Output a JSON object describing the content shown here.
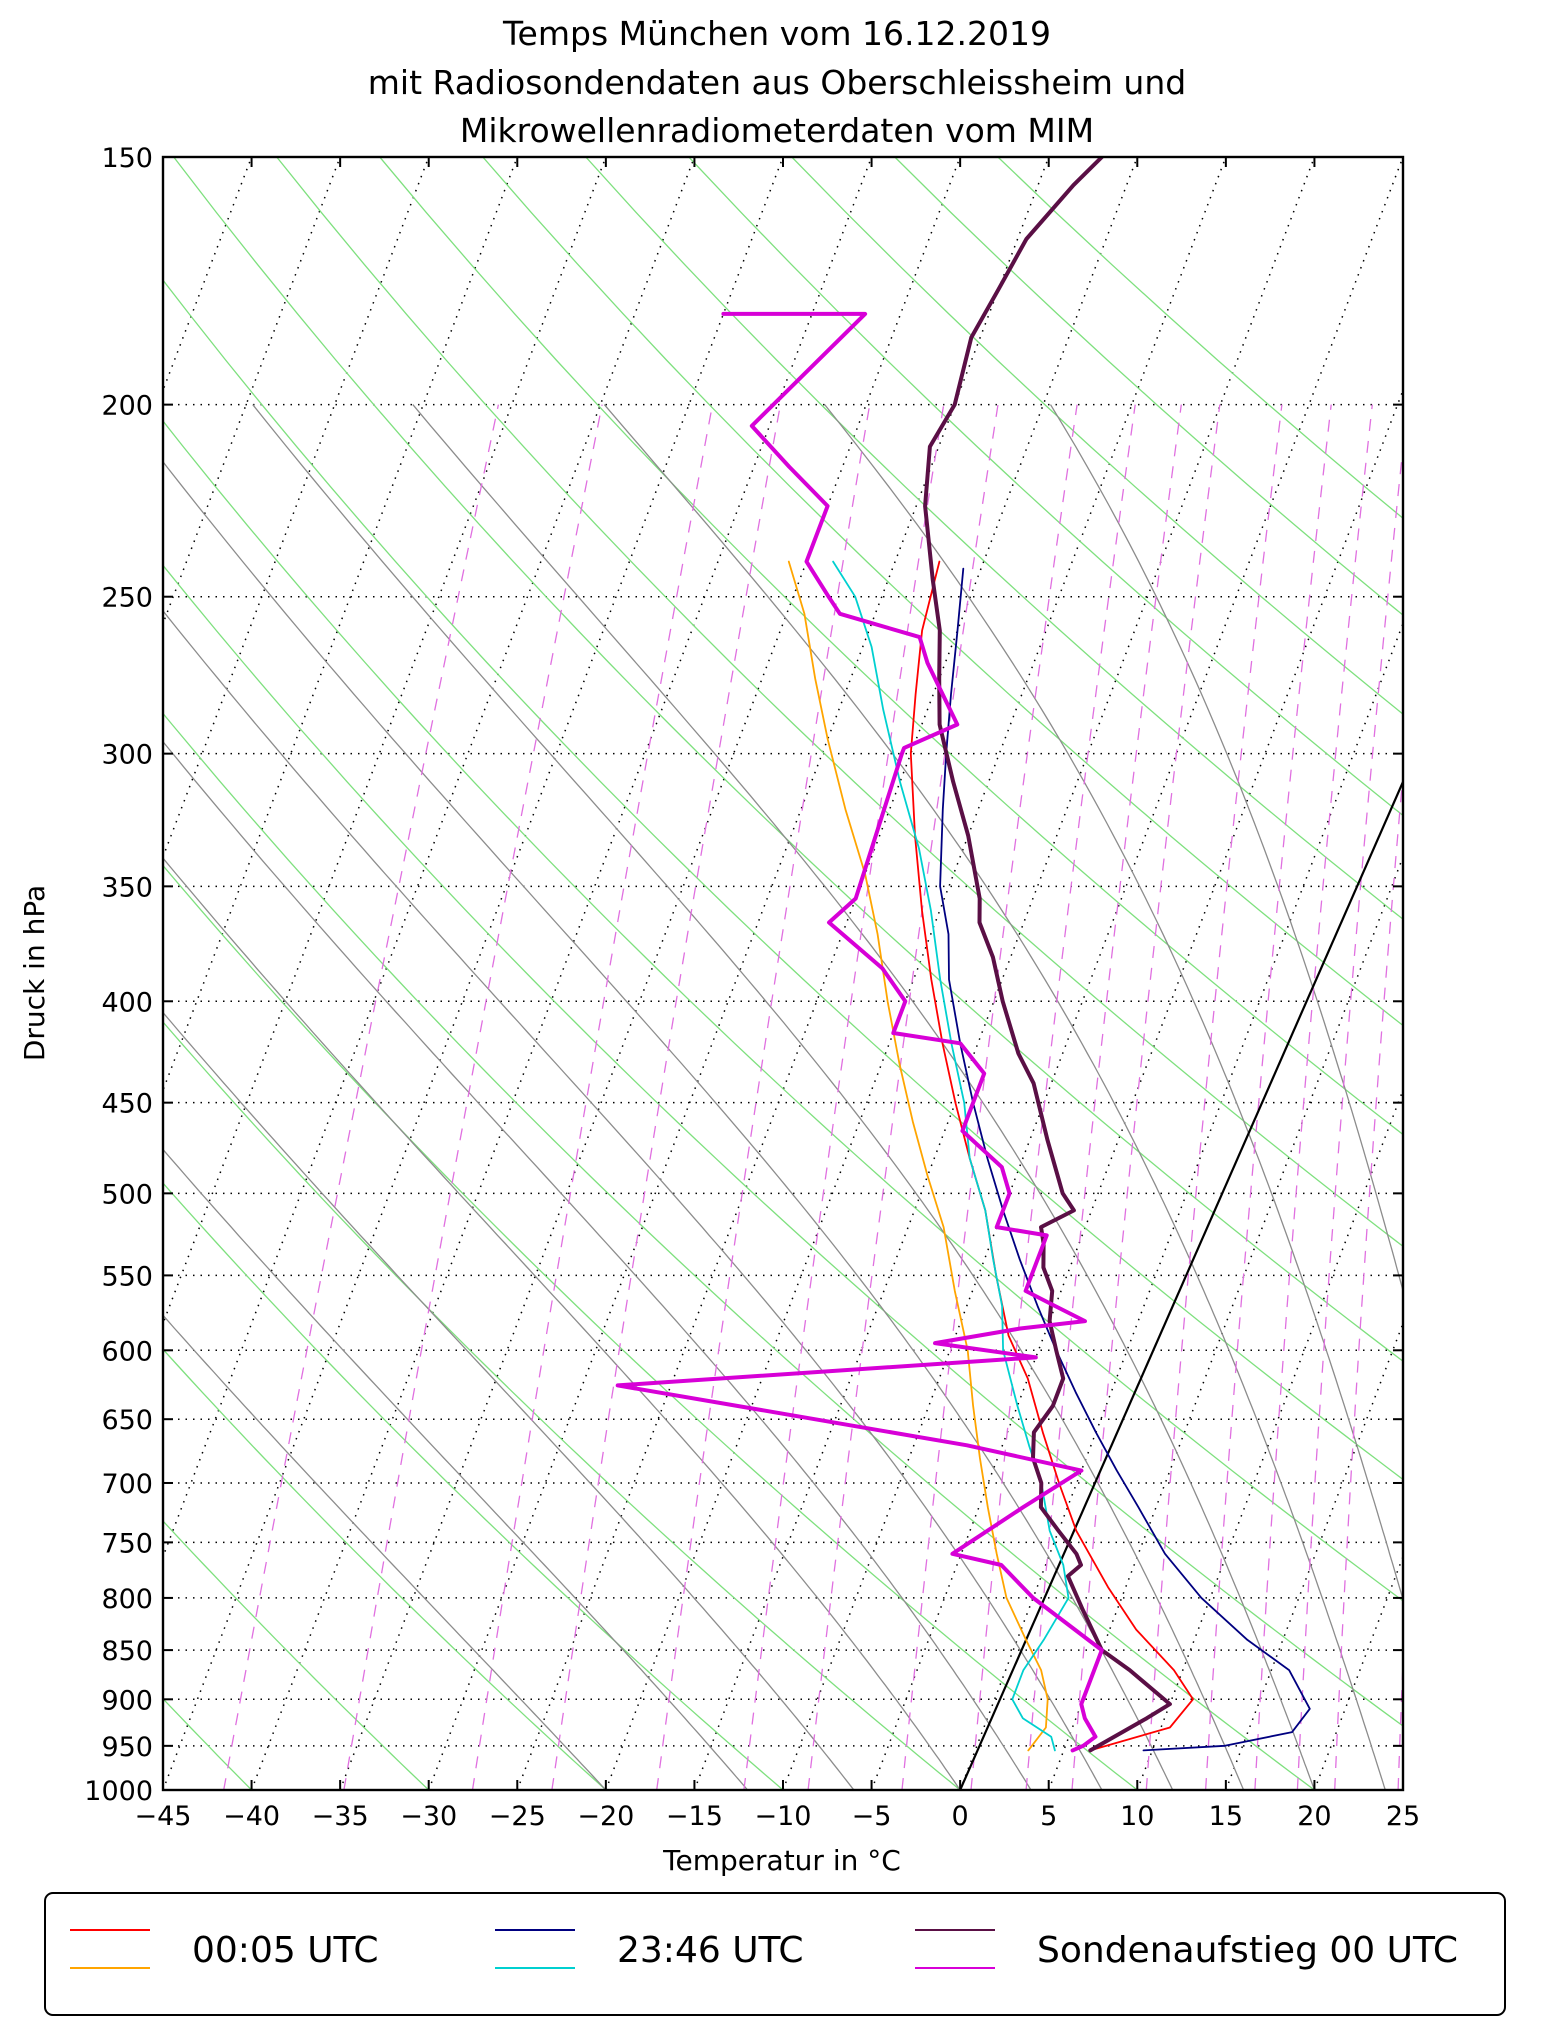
{
  "chart_data": {
    "type": "skew-t log-p",
    "title_lines": [
      "Temps München vom 16.12.2019",
      "mit Radiosondendaten aus Oberschleissheim und",
      "Mikrowellenradiometerdaten vom MIM"
    ],
    "xlabel": "Temperatur in °C",
    "ylabel": "Druck in hPa",
    "xlim": [
      -45,
      25
    ],
    "ylim": [
      1000,
      150
    ],
    "y_scale": "log",
    "grid": true,
    "x_ticks": [
      "−45",
      "−40",
      "−35",
      "−30",
      "−25",
      "−20",
      "−15",
      "−10",
      "−5",
      "0",
      "5",
      "10",
      "15",
      "20",
      "25"
    ],
    "y_ticks": [
      "150",
      "200",
      "250",
      "300",
      "350",
      "400",
      "450",
      "500",
      "550",
      "600",
      "650",
      "700",
      "750",
      "800",
      "850",
      "900",
      "950",
      "1000"
    ],
    "legend": {
      "placement": "bottom",
      "entries": [
        {
          "label": "00:05 UTC",
          "colors": [
            "#ff0000",
            "#ffa500"
          ]
        },
        {
          "label": "23:46 UTC",
          "colors": [
            "#000080",
            "#00d0d0"
          ]
        },
        {
          "label": "Sondenaufstieg 00 UTC",
          "colors": [
            "#5a0f45",
            "#d700d7"
          ]
        }
      ]
    },
    "series": [
      {
        "key": "mwr1_temp",
        "color": "#ff0000",
        "width": 1.8,
        "points": [
          [
            6.5,
            955
          ],
          [
            10.5,
            930
          ],
          [
            11.2,
            900
          ],
          [
            9.5,
            870
          ],
          [
            6.5,
            830
          ],
          [
            4,
            790
          ],
          [
            1,
            740
          ],
          [
            -1,
            700
          ],
          [
            -3,
            660
          ],
          [
            -5,
            620
          ],
          [
            -7,
            590
          ],
          [
            -9,
            550
          ],
          [
            -11,
            510
          ],
          [
            -13,
            480
          ],
          [
            -15,
            450
          ],
          [
            -17,
            420
          ],
          [
            -19,
            390
          ],
          [
            -21,
            360
          ],
          [
            -23,
            330
          ],
          [
            -25,
            300
          ],
          [
            -26,
            280
          ],
          [
            -27,
            260
          ],
          [
            -27.5,
            240
          ]
        ]
      },
      {
        "key": "mwr1_dew",
        "color": "#ffa500",
        "width": 1.8,
        "points": [
          [
            3,
            955
          ],
          [
            3.5,
            930
          ],
          [
            3,
            900
          ],
          [
            2,
            870
          ],
          [
            0.5,
            840
          ],
          [
            -1.5,
            800
          ],
          [
            -3,
            760
          ],
          [
            -4.5,
            720
          ],
          [
            -6,
            680
          ],
          [
            -7.5,
            640
          ],
          [
            -9,
            600
          ],
          [
            -11,
            560
          ],
          [
            -13,
            520
          ],
          [
            -15,
            490
          ],
          [
            -17,
            460
          ],
          [
            -19,
            430
          ],
          [
            -21,
            400
          ],
          [
            -23,
            370
          ],
          [
            -25,
            345
          ],
          [
            -27.5,
            320
          ],
          [
            -30,
            295
          ],
          [
            -32,
            275
          ],
          [
            -34,
            255
          ],
          [
            -36,
            240
          ]
        ]
      },
      {
        "key": "mwr2_temp",
        "color": "#000080",
        "width": 1.8,
        "points": [
          [
            9.5,
            955
          ],
          [
            14,
            950
          ],
          [
            17.5,
            935
          ],
          [
            18,
            910
          ],
          [
            16,
            870
          ],
          [
            13,
            840
          ],
          [
            9.5,
            800
          ],
          [
            6.5,
            760
          ],
          [
            4,
            720
          ],
          [
            2,
            690
          ],
          [
            0,
            660
          ],
          [
            -2,
            630
          ],
          [
            -4,
            600
          ],
          [
            -6,
            570
          ],
          [
            -8,
            540
          ],
          [
            -10,
            510
          ],
          [
            -12,
            480
          ],
          [
            -14,
            450
          ],
          [
            -16,
            420
          ],
          [
            -18,
            390
          ],
          [
            -19,
            370
          ],
          [
            -20.5,
            350
          ],
          [
            -22,
            320
          ],
          [
            -23,
            300
          ],
          [
            -24,
            280
          ],
          [
            -25,
            260
          ],
          [
            -26,
            242
          ]
        ]
      },
      {
        "key": "mwr2_dew",
        "color": "#00d0d0",
        "width": 1.8,
        "points": [
          [
            4.5,
            955
          ],
          [
            4,
            940
          ],
          [
            2,
            920
          ],
          [
            1,
            900
          ],
          [
            1,
            870
          ],
          [
            1.5,
            840
          ],
          [
            2,
            800
          ],
          [
            1,
            770
          ],
          [
            -0.5,
            740
          ],
          [
            -2,
            700
          ],
          [
            -3.5,
            670
          ],
          [
            -5,
            640
          ],
          [
            -7,
            600
          ],
          [
            -8,
            570
          ],
          [
            -9.5,
            540
          ],
          [
            -11,
            510
          ],
          [
            -13,
            480
          ],
          [
            -14.5,
            450
          ],
          [
            -16.5,
            420
          ],
          [
            -18.5,
            390
          ],
          [
            -20.5,
            360
          ],
          [
            -22.5,
            335
          ],
          [
            -25,
            310
          ],
          [
            -27.5,
            285
          ],
          [
            -29.5,
            265
          ],
          [
            -31.5,
            250
          ],
          [
            -33.5,
            240
          ]
        ]
      },
      {
        "key": "sonde_temp",
        "color": "#5a0f45",
        "width": 4,
        "points": [
          [
            6.5,
            955
          ],
          [
            9,
            920
          ],
          [
            10,
            905
          ],
          [
            7,
            870
          ],
          [
            5,
            850
          ],
          [
            3,
            810
          ],
          [
            1.5,
            780
          ],
          [
            2,
            770
          ],
          [
            1.5,
            760
          ],
          [
            0,
            740
          ],
          [
            -1.5,
            720
          ],
          [
            -2,
            700
          ],
          [
            -3,
            680
          ],
          [
            -3.5,
            660
          ],
          [
            -3,
            640
          ],
          [
            -3,
            620
          ],
          [
            -4,
            600
          ],
          [
            -5,
            580
          ],
          [
            -5.5,
            560
          ],
          [
            -6.5,
            545
          ],
          [
            -7,
            530
          ],
          [
            -7.5,
            520
          ],
          [
            -6,
            510
          ],
          [
            -7,
            500
          ],
          [
            -9,
            470
          ],
          [
            -11,
            440
          ],
          [
            -12.5,
            425
          ],
          [
            -14.5,
            400
          ],
          [
            -16,
            380
          ],
          [
            -17.5,
            365
          ],
          [
            -18,
            355
          ],
          [
            -20,
            330
          ],
          [
            -22,
            310
          ],
          [
            -24,
            290
          ],
          [
            -25,
            275
          ],
          [
            -26,
            260
          ],
          [
            -27.5,
            245
          ],
          [
            -29.5,
            225
          ],
          [
            -30.5,
            210
          ],
          [
            -30,
            200
          ],
          [
            -30.5,
            185
          ],
          [
            -30,
            175
          ],
          [
            -29.5,
            165
          ],
          [
            -28,
            155
          ],
          [
            -27,
            150
          ]
        ]
      },
      {
        "key": "sonde_dew",
        "color": "#d700d7",
        "width": 4,
        "points": [
          [
            5.5,
            955
          ],
          [
            6,
            950
          ],
          [
            6.5,
            940
          ],
          [
            5.5,
            920
          ],
          [
            5,
            905
          ],
          [
            5,
            850
          ],
          [
            0,
            800
          ],
          [
            -2.5,
            770
          ],
          [
            -5.5,
            760
          ],
          [
            -2.5,
            720
          ],
          [
            0,
            690
          ],
          [
            -7,
            670
          ],
          [
            -28,
            625
          ],
          [
            -5,
            605
          ],
          [
            -11,
            595
          ],
          [
            -6.5,
            585
          ],
          [
            -3,
            580
          ],
          [
            -5,
            570
          ],
          [
            -7,
            560
          ],
          [
            -7,
            525
          ],
          [
            -10,
            520
          ],
          [
            -10,
            500
          ],
          [
            -11,
            485
          ],
          [
            -14,
            465
          ],
          [
            -14,
            435
          ],
          [
            -16,
            420
          ],
          [
            -20,
            415
          ],
          [
            -20,
            400
          ],
          [
            -22,
            385
          ],
          [
            -26,
            365
          ],
          [
            -25,
            355
          ],
          [
            -25.5,
            300
          ],
          [
            -25.5,
            298
          ],
          [
            -23,
            290
          ],
          [
            -26,
            270
          ],
          [
            -27,
            262
          ],
          [
            -32,
            255
          ],
          [
            -33,
            250
          ],
          [
            -35,
            240
          ],
          [
            -35,
            225
          ],
          [
            -38,
            215
          ],
          [
            -41,
            205
          ],
          [
            -37,
            180
          ],
          [
            -45,
            180
          ]
        ]
      }
    ]
  }
}
